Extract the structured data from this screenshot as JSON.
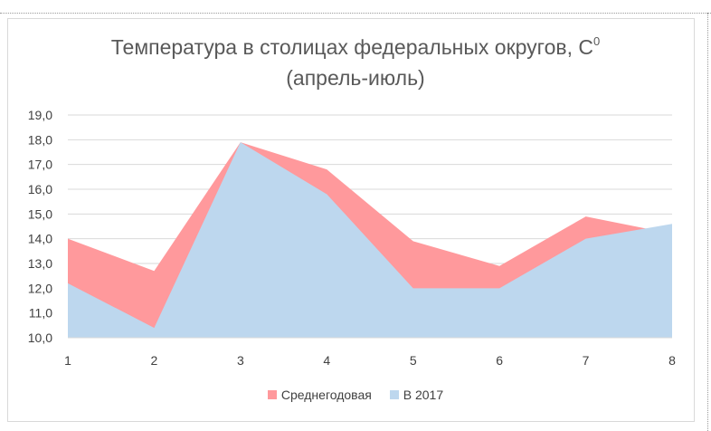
{
  "colors": {
    "series_avg": "#ff999c",
    "series_2017": "#bdd7ee",
    "grid": "#d9d9d9",
    "text": "#595959"
  },
  "chart_data": {
    "type": "area",
    "title_line1": "Температура в столицах федеральных округов, С",
    "title_sup": "0",
    "title_line2": "(апрель-июль)",
    "x": [
      1,
      2,
      3,
      4,
      5,
      6,
      7,
      8
    ],
    "x_tick_labels": [
      "1",
      "2",
      "3",
      "4",
      "5",
      "6",
      "7",
      "8"
    ],
    "y_tick_labels": [
      "10,0",
      "11,0",
      "12,0",
      "13,0",
      "14,0",
      "15,0",
      "16,0",
      "17,0",
      "18,0",
      "19,0"
    ],
    "ylim": [
      10,
      19
    ],
    "grid": true,
    "legend_position": "bottom",
    "series": [
      {
        "name": "Среднегодовая",
        "values": [
          14.0,
          12.7,
          17.9,
          16.8,
          13.9,
          12.9,
          14.9,
          14.2
        ]
      },
      {
        "name": "В 2017",
        "values": [
          12.2,
          10.4,
          17.9,
          15.8,
          12.0,
          12.0,
          14.0,
          14.6
        ]
      }
    ]
  }
}
